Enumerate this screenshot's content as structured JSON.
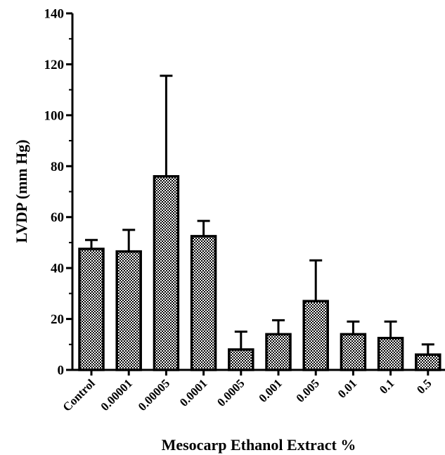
{
  "chart_data": {
    "type": "bar",
    "categories": [
      "Control",
      "0.00001",
      "0.00005",
      "0.0001",
      "0.0005",
      "0.001",
      "0.005",
      "0.01",
      "0.1",
      "0.5"
    ],
    "values": [
      47.5,
      46.5,
      76,
      52.5,
      8,
      14,
      27,
      14,
      12.5,
      6
    ],
    "error_upper": [
      51,
      55,
      115.5,
      58.5,
      15,
      19.5,
      43,
      19,
      19,
      10
    ],
    "xlabel": "Mesocarp Ethanol Extract %",
    "ylabel": "LVDP (mm Hg)",
    "ylim": [
      0,
      140
    ],
    "yticks": [
      0,
      20,
      40,
      60,
      80,
      100,
      120,
      140
    ],
    "bar_pattern": "checkered",
    "grid": false,
    "legend": "none"
  }
}
